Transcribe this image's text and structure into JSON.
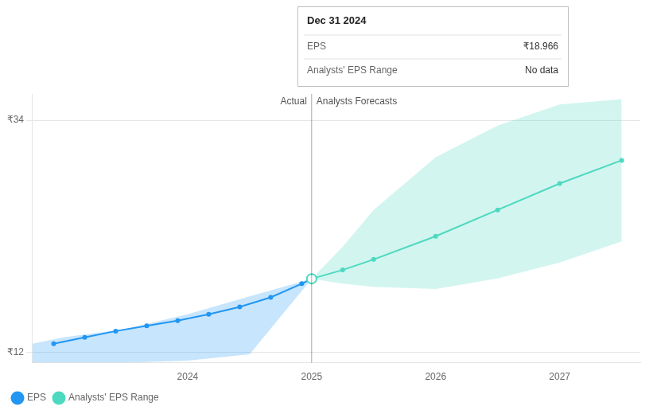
{
  "chart_data": {
    "type": "line",
    "xlim": [
      2022.75,
      2027.65
    ],
    "xticks": [
      2024,
      2025,
      2026,
      2027
    ],
    "ylim": [
      11.0,
      36.5
    ],
    "yticks": [
      {
        "value": 12,
        "label": "₹12"
      },
      {
        "value": 34,
        "label": "₹34"
      }
    ],
    "grid": "y",
    "legend": "lower left",
    "series": [
      {
        "name": "EPS",
        "type": "line",
        "color": "#2196f3",
        "marker": "o",
        "x": [
          2022.92,
          2023.17,
          2023.42,
          2023.67,
          2023.92,
          2024.17,
          2024.42,
          2024.67,
          2024.92,
          2025.0
        ],
        "values": [
          12.8,
          13.4,
          14.0,
          14.5,
          15.0,
          15.6,
          16.3,
          17.2,
          18.5,
          18.966
        ],
        "band": {
          "x": [
            2022.75,
            2023.0,
            2023.5,
            2024.0,
            2024.5,
            2025.0
          ],
          "lower": [
            11.0,
            11.0,
            11.0,
            11.2,
            11.8,
            18.966
          ],
          "upper": [
            12.8,
            13.4,
            14.2,
            15.6,
            17.3,
            18.966
          ]
        }
      },
      {
        "name": "Analysts' EPS Range",
        "type": "line",
        "color": "#4dd9c0",
        "marker": "o",
        "x": [
          2025.0,
          2025.25,
          2025.5,
          2026.0,
          2026.5,
          2027.0,
          2027.5
        ],
        "values": [
          18.966,
          19.8,
          20.8,
          23.0,
          25.5,
          28.0,
          30.2
        ],
        "band": {
          "x": [
            2025.0,
            2025.25,
            2025.5,
            2026.0,
            2026.5,
            2027.0,
            2027.5
          ],
          "lower": [
            18.966,
            18.5,
            18.2,
            18.0,
            19.0,
            20.5,
            22.5
          ],
          "upper": [
            18.966,
            22.0,
            25.5,
            30.5,
            33.5,
            35.5,
            36.0
          ]
        }
      }
    ],
    "highlight": {
      "x": 2025.0,
      "y": 18.966
    },
    "divider_x": 2025.0,
    "annotations": [
      "Actual",
      "Analysts Forecasts"
    ],
    "tooltip": {
      "title": "Dec 31 2024",
      "rows": [
        {
          "label": "EPS",
          "value": 18.966,
          "value_label": "₹18.966"
        },
        {
          "label": "Analysts' EPS Range",
          "value_label": "No data"
        }
      ]
    }
  }
}
